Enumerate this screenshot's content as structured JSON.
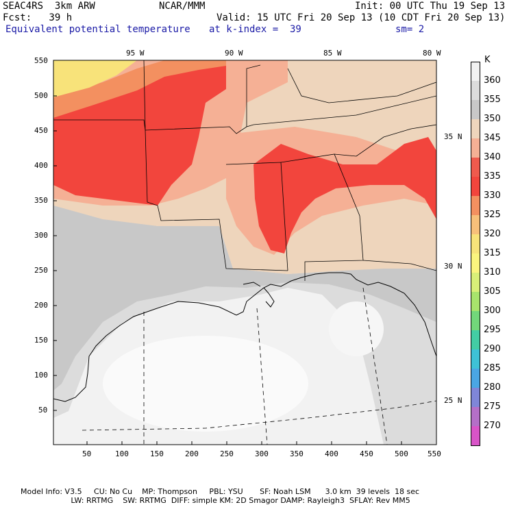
{
  "header": {
    "line1_left": "SEAC4RS  3km ARW",
    "line1_mid": "NCAR/MMM",
    "line1_right": "Init: 00 UTC Thu 19 Sep 13",
    "line2_left": "Fcst:   39 h",
    "line2_right": "Valid: 15 UTC Fri 20 Sep 13 (10 CDT Fri 20 Sep 13)",
    "line3_left": "Equivalent potential temperature",
    "line3_mid": "at k-index =  39",
    "line3_right": "sm= 2"
  },
  "map": {
    "lon_labels": [
      "95 W",
      "90 W",
      "85 W",
      "80 W"
    ],
    "lat_labels": [
      "35 N",
      "30 N",
      "25 N"
    ],
    "y_ticks": [
      "550",
      "500",
      "450",
      "400",
      "350",
      "300",
      "250",
      "200",
      "150",
      "100",
      "50"
    ],
    "x_ticks": [
      "50",
      "100",
      "150",
      "200",
      "250",
      "300",
      "350",
      "400",
      "450",
      "500",
      "550"
    ]
  },
  "colorbar": {
    "unit": "K",
    "levels": [
      {
        "label": "360",
        "color": "#f2f2f2"
      },
      {
        "label": "355",
        "color": "#dcdcdc"
      },
      {
        "label": "350",
        "color": "#c8c8c8"
      },
      {
        "label": "345",
        "color": "#eed5bc"
      },
      {
        "label": "340",
        "color": "#f5b095"
      },
      {
        "label": "335",
        "color": "#ef5a4d"
      },
      {
        "label": "330",
        "color": "#f2453d"
      },
      {
        "label": "325",
        "color": "#f39060"
      },
      {
        "label": "320",
        "color": "#f7c07a"
      },
      {
        "label": "315",
        "color": "#f8e37a"
      },
      {
        "label": "310",
        "color": "#fbf47e"
      },
      {
        "label": "305",
        "color": "#d9ef78"
      },
      {
        "label": "300",
        "color": "#a8e46c"
      },
      {
        "label": "295",
        "color": "#72d77a"
      },
      {
        "label": "290",
        "color": "#43cda4"
      },
      {
        "label": "285",
        "color": "#3ec2d6"
      },
      {
        "label": "280",
        "color": "#4aa6e4"
      },
      {
        "label": "275",
        "color": "#7f86d8"
      },
      {
        "label": "270",
        "color": "#b46fc8"
      },
      {
        "label": "",
        "color": "#d954c8"
      }
    ]
  },
  "footer": {
    "line1": "Model Info: V3.5     CU: No Cu    MP: Thompson     PBL: YSU       SF: Noah LSM      3.0 km  39 levels  18 sec",
    "line2": "                     LW: RRTMG    SW: RRTMG  DIFF: simple KM: 2D Smagor DAMP: Rayleigh3  SFLAY: Rev MM5"
  },
  "colors": {
    "land_far": "#eed5bc",
    "land_warm": "#f5b095",
    "land_hot": "#f2453d",
    "land_mid": "#f39060",
    "ocean_far": "#f2f2f2",
    "ocean_mid": "#dcdcdc",
    "ocean_near": "#c8c8c8",
    "yellow": "#f8e37a"
  }
}
